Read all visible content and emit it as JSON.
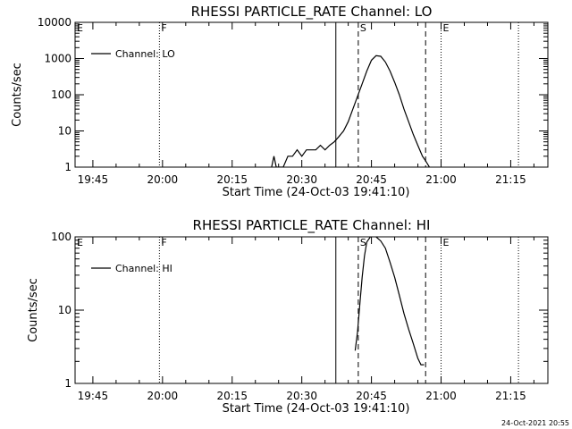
{
  "footer": {
    "timestamp": "24-Oct-2021 20:55"
  },
  "colors": {
    "line": "#000000",
    "background": "#ffffff"
  },
  "chart_data": [
    {
      "type": "line",
      "title": "RHESSI PARTICLE_RATE Channel: LO",
      "xlabel": "Start Time (24-Oct-03 19:41:10)",
      "ylabel": "Counts/sec",
      "yscale": "log",
      "ylim": [
        1,
        10000
      ],
      "yticks": [
        1,
        10,
        100,
        1000,
        10000
      ],
      "ytick_labels": [
        "1",
        "10",
        "100",
        "1000",
        "10000"
      ],
      "xlim": [
        "19:41:10",
        "21:23:00"
      ],
      "xticks": [
        "19:45",
        "20:00",
        "20:15",
        "20:30",
        "20:45",
        "21:00",
        "21:15"
      ],
      "legend": {
        "position": "top-left",
        "entries": [
          "Channel: LO"
        ]
      },
      "grid": false,
      "series": [
        {
          "name": "Channel: LO",
          "x": [
            "20:23:30",
            "20:24:00",
            "20:24:30",
            "20:25:00",
            "20:26:00",
            "20:27:00",
            "20:28:00",
            "20:29:00",
            "20:30:00",
            "20:31:00",
            "20:32:00",
            "20:33:00",
            "20:34:00",
            "20:35:00",
            "20:36:00",
            "20:37:00",
            "20:38:00",
            "20:39:00",
            "20:40:00",
            "20:41:00",
            "20:42:00",
            "20:43:00",
            "20:44:00",
            "20:45:00",
            "20:46:00",
            "20:47:00",
            "20:48:00",
            "20:49:00",
            "20:50:00",
            "20:51:00",
            "20:52:00",
            "20:53:00",
            "20:54:00",
            "20:55:00",
            "20:56:00",
            "20:56:40",
            "20:57:30"
          ],
          "y": [
            1,
            2,
            1,
            1,
            1,
            2,
            2,
            3,
            2,
            3,
            3,
            3,
            4,
            3,
            4,
            5,
            7,
            10,
            18,
            40,
            90,
            200,
            450,
            900,
            1200,
            1150,
            800,
            450,
            220,
            100,
            40,
            18,
            8,
            4,
            2,
            1.5,
            1
          ]
        }
      ],
      "markers": [
        {
          "label": "E",
          "time": "19:41:10",
          "style": "dotted"
        },
        {
          "label": "F",
          "time": "19:59:20",
          "style": "dotted"
        },
        {
          "label": "",
          "time": "20:37:20",
          "style": "solid"
        },
        {
          "label": "S",
          "time": "20:42:10",
          "style": "dashed"
        },
        {
          "label": "",
          "time": "20:56:40",
          "style": "dashed"
        },
        {
          "label": "E",
          "time": "21:00:00",
          "style": "dotted"
        },
        {
          "label": "",
          "time": "21:16:40",
          "style": "dotted"
        }
      ]
    },
    {
      "type": "line",
      "title": "RHESSI PARTICLE_RATE Channel: HI",
      "xlabel": "Start Time (24-Oct-03 19:41:10)",
      "ylabel": "Counts/sec",
      "yscale": "log",
      "ylim": [
        1,
        100
      ],
      "yticks": [
        1,
        10,
        100
      ],
      "ytick_labels": [
        "1",
        "10",
        "100"
      ],
      "xlim": [
        "19:41:10",
        "21:23:00"
      ],
      "xticks": [
        "19:45",
        "20:00",
        "20:15",
        "20:30",
        "20:45",
        "21:00",
        "21:15"
      ],
      "legend": {
        "position": "top-left",
        "entries": [
          "Channel: HI"
        ]
      },
      "grid": false,
      "series": [
        {
          "name": "Channel: HI",
          "x": [
            "20:41:30",
            "20:42:00",
            "20:42:30",
            "20:43:00",
            "20:43:30",
            "20:44:00",
            "20:45:00",
            "20:46:00",
            "20:47:00",
            "20:48:00",
            "20:49:00",
            "20:50:00",
            "20:51:00",
            "20:52:00",
            "20:53:00",
            "20:54:00",
            "20:55:00",
            "20:55:40",
            "20:56:20"
          ],
          "y": [
            2.8,
            5,
            12,
            28,
            55,
            85,
            105,
            100,
            88,
            70,
            45,
            28,
            16,
            9,
            5.5,
            3.5,
            2.2,
            1.8,
            1.8
          ]
        }
      ],
      "markers": [
        {
          "label": "E",
          "time": "19:41:10",
          "style": "dotted"
        },
        {
          "label": "F",
          "time": "19:59:20",
          "style": "dotted"
        },
        {
          "label": "",
          "time": "20:37:20",
          "style": "solid"
        },
        {
          "label": "S",
          "time": "20:42:10",
          "style": "dashed"
        },
        {
          "label": "",
          "time": "20:56:40",
          "style": "dashed"
        },
        {
          "label": "E",
          "time": "21:00:00",
          "style": "dotted"
        },
        {
          "label": "",
          "time": "21:16:40",
          "style": "dotted"
        }
      ]
    }
  ]
}
